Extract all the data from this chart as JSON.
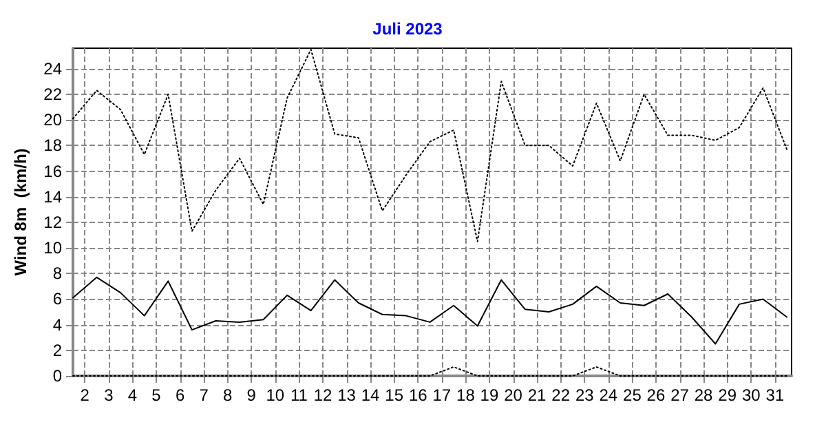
{
  "chart_data": {
    "type": "line",
    "title": "Juli 2023",
    "ylabel": "Wind 8m  (km/h)",
    "x": [
      1.5,
      2.5,
      3.5,
      4.5,
      5.5,
      6.5,
      7.5,
      8.5,
      9.5,
      10.5,
      11.5,
      12.5,
      13.5,
      14.5,
      15.5,
      16.5,
      17.5,
      18.5,
      19.5,
      20.5,
      21.5,
      22.5,
      23.5,
      24.5,
      25.5,
      26.5,
      27.5,
      28.5,
      29.5,
      30.5,
      31.5
    ],
    "series": [
      {
        "color": "#000000",
        "line_style": "dotted",
        "values": [
          20.1,
          22.3,
          20.8,
          17.3,
          22.0,
          11.3,
          14.5,
          17.0,
          13.4,
          21.7,
          25.5,
          18.9,
          18.6,
          12.9,
          15.7,
          18.3,
          19.2,
          10.5,
          23.0,
          18.0,
          18.0,
          16.4,
          21.3,
          16.8,
          22.0,
          18.8,
          18.8,
          18.4,
          19.4,
          22.5,
          17.7
        ]
      },
      {
        "color": "#000000",
        "line_style": "solid",
        "values": [
          6.1,
          7.7,
          6.5,
          4.7,
          7.4,
          3.6,
          4.3,
          4.2,
          4.4,
          6.3,
          5.1,
          7.5,
          5.7,
          4.8,
          4.7,
          4.2,
          5.5,
          3.9,
          7.5,
          5.2,
          5.0,
          5.6,
          7.0,
          5.7,
          5.5,
          6.4,
          4.6,
          2.5,
          5.6,
          6.0,
          4.6
        ]
      },
      {
        "color": "#000000",
        "line_style": "dotted",
        "values": [
          0,
          0,
          0,
          0,
          0,
          0,
          0,
          0,
          0,
          0,
          0,
          0,
          0,
          0,
          0,
          0,
          0.7,
          0,
          0,
          0,
          0,
          0,
          0.7,
          0,
          0,
          0,
          0,
          0,
          0,
          0,
          0
        ]
      }
    ],
    "xlim": [
      1.5,
      31.7
    ],
    "xticks": [
      2,
      3,
      4,
      5,
      6,
      7,
      8,
      9,
      10,
      11,
      12,
      13,
      14,
      15,
      16,
      17,
      18,
      19,
      20,
      21,
      22,
      23,
      24,
      25,
      26,
      27,
      28,
      29,
      30,
      31
    ],
    "ylim": [
      0,
      25.6
    ],
    "yticks": [
      0,
      2,
      4,
      6,
      8,
      10,
      12,
      14,
      16,
      18,
      20,
      22,
      24
    ],
    "grid": true,
    "marker": "none"
  }
}
